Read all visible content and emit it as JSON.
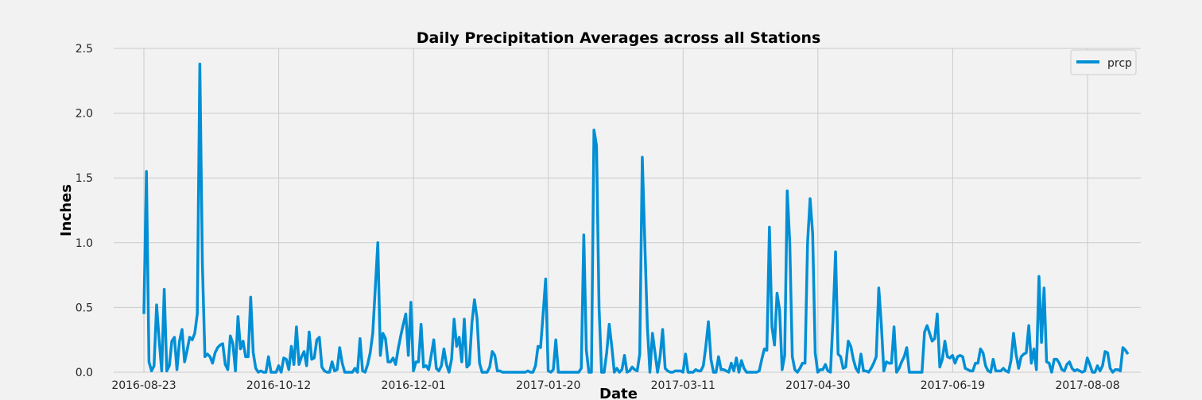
{
  "chart_data": {
    "type": "line",
    "title": "Daily Precipitation Averages across all Stations",
    "xlabel": "Date",
    "ylabel": "Inches",
    "ylim": [
      0,
      2.5
    ],
    "yticks": [
      "0.0",
      "0.5",
      "1.0",
      "1.5",
      "2.0",
      "2.5"
    ],
    "xticks": [
      "2016-08-23",
      "2016-10-12",
      "2016-12-01",
      "2017-01-20",
      "2017-03-11",
      "2017-04-30",
      "2017-06-19",
      "2017-08-08"
    ],
    "x_start": "2016-08-23",
    "x_end": "2017-08-23",
    "grid": true,
    "legend_position": "top-right",
    "colors": {
      "line": "#008fd5",
      "background": "#f2f2f2",
      "grid": "#cbcbcb"
    },
    "series": [
      {
        "name": "prcp",
        "values": [
          0.45,
          1.55,
          0.08,
          0.01,
          0.05,
          0.52,
          0.25,
          0.01,
          0.64,
          0.01,
          0.05,
          0.24,
          0.27,
          0.02,
          0.24,
          0.33,
          0.08,
          0.17,
          0.27,
          0.25,
          0.3,
          0.45,
          2.38,
          0.84,
          0.12,
          0.14,
          0.12,
          0.07,
          0.15,
          0.19,
          0.21,
          0.22,
          0.06,
          0.02,
          0.28,
          0.22,
          0.01,
          0.43,
          0.18,
          0.24,
          0.12,
          0.12,
          0.58,
          0.15,
          0.03,
          0.0,
          0.01,
          0.0,
          0.0,
          0.12,
          0.0,
          0.0,
          0.0,
          0.05,
          0.0,
          0.11,
          0.1,
          0.02,
          0.2,
          0.06,
          0.35,
          0.06,
          0.12,
          0.16,
          0.05,
          0.31,
          0.1,
          0.11,
          0.25,
          0.27,
          0.04,
          0.01,
          0.0,
          0.0,
          0.08,
          0.01,
          0.02,
          0.19,
          0.07,
          0.0,
          0.0,
          0.0,
          0.0,
          0.03,
          0.0,
          0.26,
          0.01,
          0.0,
          0.06,
          0.15,
          0.3,
          0.65,
          1.0,
          0.13,
          0.3,
          0.26,
          0.08,
          0.08,
          0.11,
          0.06,
          0.18,
          0.28,
          0.37,
          0.45,
          0.13,
          0.54,
          0.01,
          0.08,
          0.08,
          0.37,
          0.04,
          0.05,
          0.02,
          0.13,
          0.25,
          0.03,
          0.01,
          0.05,
          0.18,
          0.06,
          0.0,
          0.1,
          0.41,
          0.2,
          0.27,
          0.08,
          0.41,
          0.04,
          0.06,
          0.38,
          0.56,
          0.42,
          0.07,
          0.0,
          0.0,
          0.0,
          0.04,
          0.16,
          0.13,
          0.01,
          0.01,
          0.0,
          0.0,
          0.0,
          0.0,
          0.0,
          0.0,
          0.0,
          0.0,
          0.0,
          0.0,
          0.01,
          0.0,
          0.0,
          0.05,
          0.2,
          0.19,
          0.45,
          0.72,
          0.01,
          0.0,
          0.02,
          0.25,
          0.0,
          0.0,
          0.0,
          0.0,
          0.0,
          0.0,
          0.0,
          0.0,
          0.0,
          0.03,
          1.06,
          0.17,
          0.0,
          0.0,
          1.87,
          1.75,
          0.5,
          0.0,
          0.0,
          0.15,
          0.37,
          0.2,
          0.0,
          0.03,
          0.0,
          0.02,
          0.13,
          0.0,
          0.01,
          0.04,
          0.02,
          0.01,
          0.14,
          1.66,
          1.0,
          0.35,
          0.0,
          0.3,
          0.15,
          0.0,
          0.12,
          0.33,
          0.03,
          0.01,
          0.0,
          0.0,
          0.01,
          0.01,
          0.01,
          0.0,
          0.14,
          0.0,
          0.0,
          0.0,
          0.02,
          0.01,
          0.01,
          0.05,
          0.2,
          0.39,
          0.1,
          0.0,
          0.0,
          0.12,
          0.02,
          0.02,
          0.01,
          0.0,
          0.07,
          0.01,
          0.11,
          0.0,
          0.09,
          0.03,
          0.0,
          0.0,
          0.0,
          0.0,
          0.0,
          0.01,
          0.1,
          0.18,
          0.17,
          1.12,
          0.35,
          0.21,
          0.61,
          0.48,
          0.02,
          0.13,
          1.4,
          1.0,
          0.12,
          0.02,
          0.0,
          0.03,
          0.07,
          0.07,
          1.0,
          1.34,
          1.07,
          0.15,
          0.0,
          0.02,
          0.02,
          0.06,
          0.01,
          0.0,
          0.4,
          0.93,
          0.14,
          0.12,
          0.03,
          0.04,
          0.24,
          0.2,
          0.1,
          0.03,
          0.0,
          0.14,
          0.01,
          0.01,
          0.0,
          0.03,
          0.07,
          0.12,
          0.65,
          0.37,
          0.01,
          0.08,
          0.07,
          0.07,
          0.35,
          0.0,
          0.03,
          0.08,
          0.12,
          0.19,
          0.0,
          0.0,
          0.0,
          0.0,
          0.0,
          0.0,
          0.31,
          0.36,
          0.3,
          0.24,
          0.26,
          0.45,
          0.04,
          0.1,
          0.24,
          0.12,
          0.11,
          0.13,
          0.07,
          0.12,
          0.13,
          0.12,
          0.03,
          0.02,
          0.01,
          0.01,
          0.07,
          0.07,
          0.18,
          0.15,
          0.05,
          0.01,
          0.0,
          0.1,
          0.01,
          0.01,
          0.01,
          0.03,
          0.01,
          0.0,
          0.09,
          0.3,
          0.14,
          0.03,
          0.12,
          0.14,
          0.15,
          0.36,
          0.07,
          0.18,
          0.02,
          0.74,
          0.23,
          0.65,
          0.08,
          0.07,
          0.0,
          0.1,
          0.1,
          0.07,
          0.02,
          0.01,
          0.06,
          0.08,
          0.03,
          0.01,
          0.02,
          0.01,
          0.0,
          0.01,
          0.11,
          0.06,
          0.0,
          0.0,
          0.05,
          0.01,
          0.05,
          0.16,
          0.15,
          0.03,
          0.0,
          0.02,
          0.02,
          0.01,
          0.19,
          0.17,
          0.14
        ]
      }
    ]
  }
}
